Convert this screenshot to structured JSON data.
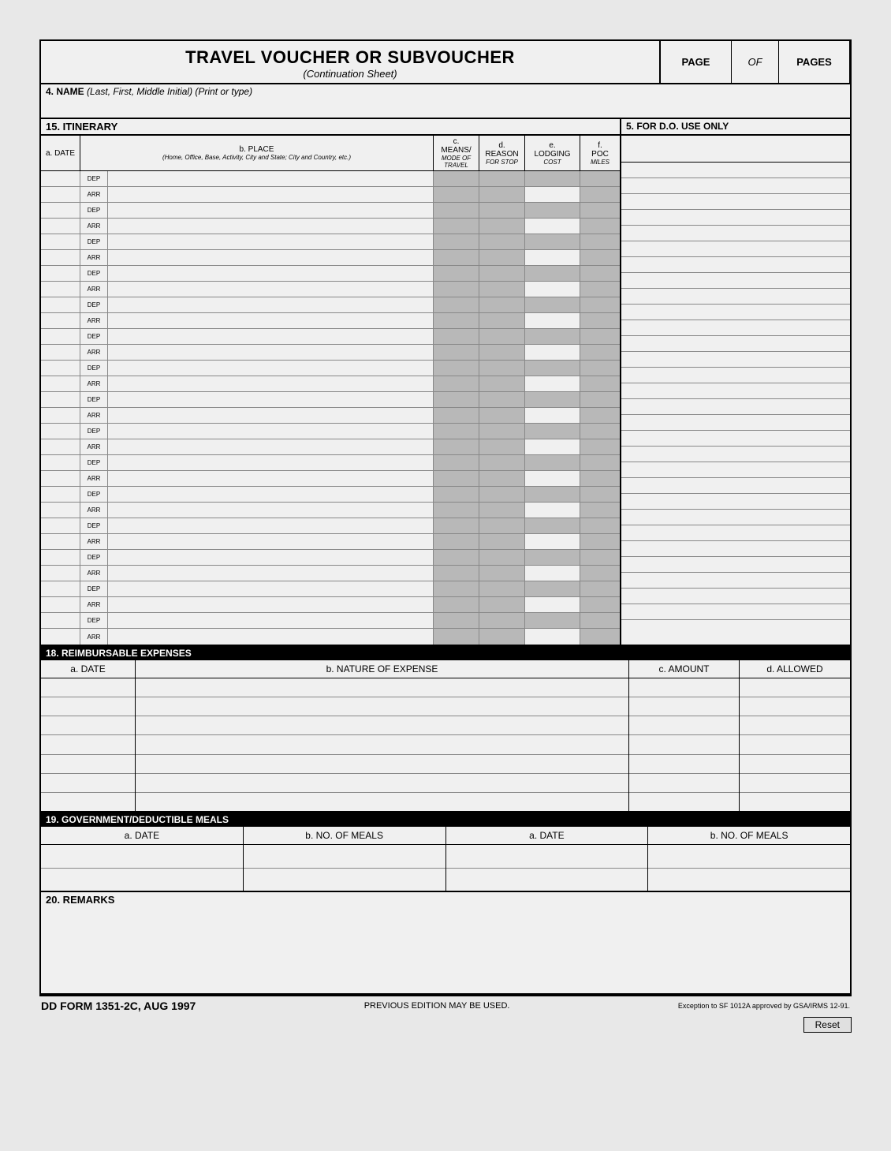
{
  "header": {
    "title": "TRAVEL VOUCHER OR SUBVOUCHER",
    "subtitle": "(Continuation Sheet)",
    "page_label": "PAGE",
    "of_label": "OF",
    "pages_label": "PAGES"
  },
  "section4": {
    "label": "4. NAME",
    "hint": "(Last, First, Middle Initial) (Print or type)"
  },
  "section15": {
    "label": "15. ITINERARY"
  },
  "section5": {
    "label": "5. FOR D.O. USE ONLY"
  },
  "itin_cols": {
    "date": {
      "top": "a. DATE"
    },
    "place": {
      "top": "b. PLACE",
      "bot": "(Home, Office, Base, Activity, City and State; City and Country, etc.)"
    },
    "means": {
      "top": "c.",
      "mid": "MEANS/",
      "bot": "MODE OF TRAVEL"
    },
    "reason": {
      "top": "d.",
      "mid": "REASON",
      "bot": "FOR STOP"
    },
    "lodging": {
      "top": "e.",
      "mid": "LODGING",
      "bot": "COST"
    },
    "poc": {
      "top": "f.",
      "mid": "POC",
      "bot": "MILES"
    }
  },
  "itin_rows": [
    {
      "sub": "DEP",
      "lodging_shaded": true
    },
    {
      "sub": "ARR"
    },
    {
      "sub": "DEP",
      "lodging_shaded": true
    },
    {
      "sub": "ARR"
    },
    {
      "sub": "DEP",
      "lodging_shaded": true
    },
    {
      "sub": "ARR"
    },
    {
      "sub": "DEP",
      "lodging_shaded": true
    },
    {
      "sub": "ARR"
    },
    {
      "sub": "DEP",
      "lodging_shaded": true
    },
    {
      "sub": "ARR"
    },
    {
      "sub": "DEP",
      "lodging_shaded": true
    },
    {
      "sub": "ARR"
    },
    {
      "sub": "DEP",
      "lodging_shaded": true
    },
    {
      "sub": "ARR"
    },
    {
      "sub": "DEP",
      "lodging_shaded": true
    },
    {
      "sub": "ARR"
    },
    {
      "sub": "DEP",
      "lodging_shaded": true
    },
    {
      "sub": "ARR"
    },
    {
      "sub": "DEP",
      "lodging_shaded": true
    },
    {
      "sub": "ARR"
    },
    {
      "sub": "DEP",
      "lodging_shaded": true
    },
    {
      "sub": "ARR"
    },
    {
      "sub": "DEP",
      "lodging_shaded": true
    },
    {
      "sub": "ARR"
    },
    {
      "sub": "DEP",
      "lodging_shaded": true
    },
    {
      "sub": "ARR"
    },
    {
      "sub": "DEP",
      "lodging_shaded": true
    },
    {
      "sub": "ARR"
    },
    {
      "sub": "DEP",
      "lodging_shaded": true
    },
    {
      "sub": "ARR"
    }
  ],
  "section18": {
    "label": "18. REIMBURSABLE EXPENSES",
    "cols": {
      "date": "a. DATE",
      "nature": "b. NATURE OF EXPENSE",
      "amount": "c. AMOUNT",
      "allowed": "d. ALLOWED"
    },
    "row_count": 7
  },
  "section19": {
    "label": "19. GOVERNMENT/DEDUCTIBLE MEALS",
    "cols": {
      "date1": "a. DATE",
      "meals1": "b. NO. OF MEALS",
      "date2": "a. DATE",
      "meals2": "b. NO. OF MEALS"
    },
    "row_count": 2
  },
  "section20": {
    "label": "20. REMARKS"
  },
  "footer": {
    "formno": "DD FORM 1351-2C, AUG 1997",
    "prev": "PREVIOUS EDITION MAY BE USED.",
    "exception": "Exception to SF 1012A approved by GSA/IRMS 12-91.",
    "reset": "Reset"
  },
  "colors": {
    "shaded": "#b8b8b8",
    "bg": "#f0f0f0",
    "page_bg": "#e8e8e8"
  }
}
